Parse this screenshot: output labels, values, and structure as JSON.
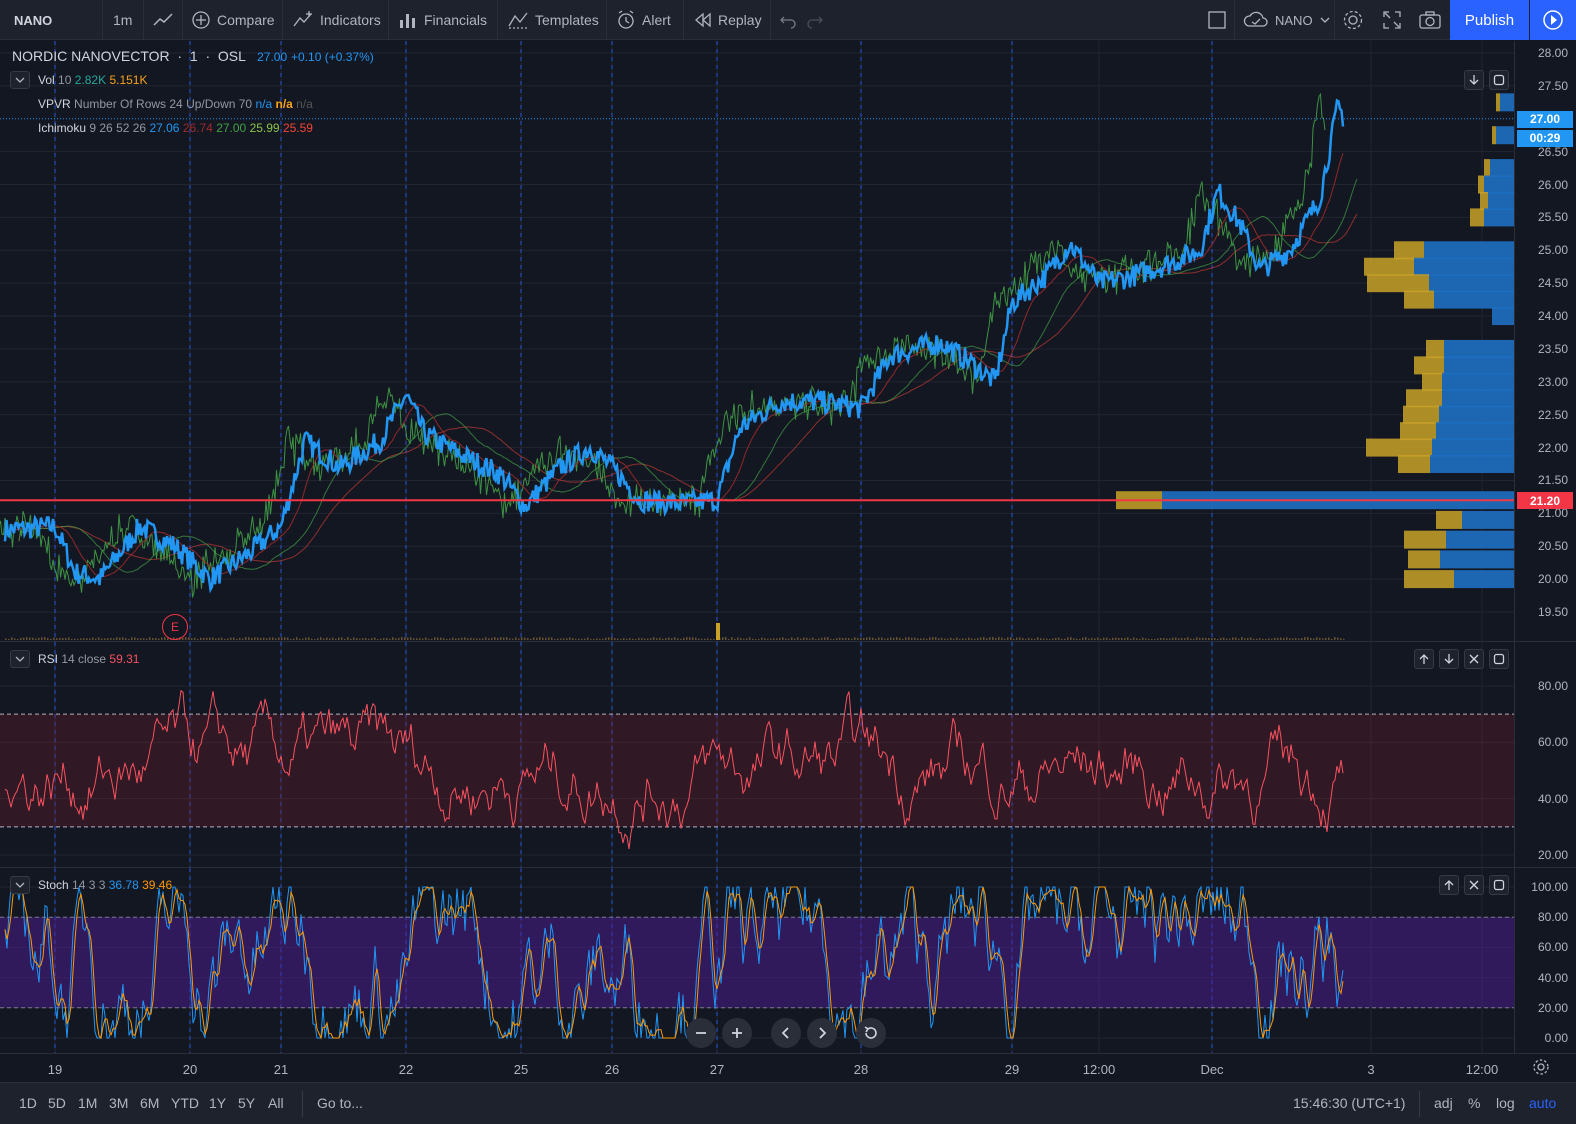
{
  "toolbar": {
    "symbol": "NANO",
    "interval": "1m",
    "compare": "Compare",
    "indicators": "Indicators",
    "financials": "Financials",
    "templates": "Templates",
    "alert": "Alert",
    "replay": "Replay",
    "layout_name": "NANO",
    "publish": "Publish"
  },
  "main": {
    "title": "NORDIC NANOVECTOR",
    "interval": "1",
    "exchange": "OSL",
    "price": "27.00",
    "change": "+0.10 (+0.37%)",
    "vol": {
      "name": "Vol",
      "params": "10",
      "v1": "2.82K",
      "v2": "5.151K"
    },
    "vpvr": {
      "name": "VPVR",
      "params": "Number Of Rows 24 Up/Down 70",
      "v1": "n/a",
      "v2": "n/a",
      "v3": "n/a"
    },
    "ichimoku": {
      "name": "Ichimoku",
      "params": "9 26 52 26",
      "v1": "27.06",
      "v2": "26.74",
      "v3": "27.00",
      "v4": "25.99",
      "v5": "25.59"
    },
    "earnings_marker": "E",
    "scale_ticks": [
      "28.00",
      "27.50",
      "26.50",
      "26.00",
      "25.50",
      "25.00",
      "24.50",
      "24.00",
      "23.50",
      "23.00",
      "22.50",
      "22.00",
      "21.50",
      "21.00",
      "20.50",
      "20.00",
      "19.50"
    ],
    "price_tag": "27.00",
    "countdown_tag": "00:29",
    "level_tag": "21.20",
    "level_color": "#f23645"
  },
  "rsi": {
    "name": "RSI",
    "params": "14 close",
    "value": "59.31",
    "scale_ticks": [
      "80.00",
      "60.00",
      "40.00",
      "20.00"
    ],
    "color": "#f7525f"
  },
  "stoch": {
    "name": "Stoch",
    "params": "14 3 3",
    "k": "36.78",
    "d": "39.46",
    "scale_ticks": [
      "100.00",
      "80.00",
      "60.00",
      "40.00",
      "20.00",
      "0.00"
    ]
  },
  "time_axis": [
    "19",
    "20",
    "21",
    "22",
    "25",
    "26",
    "27",
    "28",
    "29",
    "12:00",
    "Dec",
    "3",
    "12:00"
  ],
  "bottom": {
    "ranges": [
      "1D",
      "5D",
      "1M",
      "3M",
      "6M",
      "YTD",
      "1Y",
      "5Y",
      "All"
    ],
    "goto": "Go to...",
    "clock": "15:46:30 (UTC+1)",
    "adj": "adj",
    "percent": "%",
    "log": "log",
    "auto": "auto"
  },
  "colors": {
    "price_line": "#2196f3",
    "up_volume": "#2962ff",
    "down_volume": "#c9a227",
    "accent": "#2962ff"
  },
  "icons": [
    "chart-style-icon",
    "compare-icon",
    "indicators-icon",
    "financials-icon",
    "templates-icon",
    "alert-icon",
    "replay-icon",
    "undo-icon",
    "redo-icon",
    "rectangle-icon",
    "cloud-icon",
    "gear-icon",
    "fullscreen-icon",
    "camera-icon",
    "play-icon"
  ]
}
